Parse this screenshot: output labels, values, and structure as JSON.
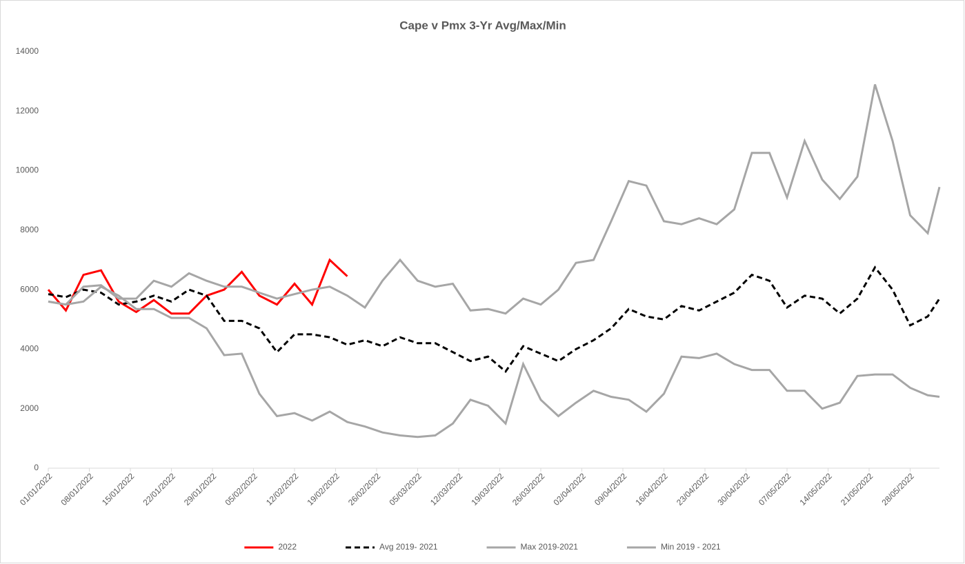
{
  "chart_data": {
    "type": "line",
    "title": "Cape v  Pmx 3-Yr Avg/Max/Min",
    "x": [
      "01/01/2022",
      "04/01/2022",
      "07/01/2022",
      "10/01/2022",
      "13/01/2022",
      "16/01/2022",
      "19/01/2022",
      "22/01/2022",
      "25/01/2022",
      "28/01/2022",
      "31/01/2022",
      "03/02/2022",
      "06/02/2022",
      "09/02/2022",
      "12/02/2022",
      "15/02/2022",
      "18/02/2022",
      "21/02/2022",
      "24/02/2022",
      "27/02/2022",
      "02/03/2022",
      "05/03/2022",
      "08/03/2022",
      "11/03/2022",
      "14/03/2022",
      "17/03/2022",
      "20/03/2022",
      "23/03/2022",
      "26/03/2022",
      "29/03/2022",
      "01/04/2022",
      "04/04/2022",
      "07/04/2022",
      "10/04/2022",
      "13/04/2022",
      "16/04/2022",
      "19/04/2022",
      "22/04/2022",
      "25/04/2022",
      "28/04/2022",
      "01/05/2022",
      "04/05/2022",
      "07/05/2022",
      "10/05/2022",
      "13/05/2022",
      "16/05/2022",
      "19/05/2022",
      "22/05/2022",
      "25/05/2022",
      "28/05/2022",
      "31/05/2022",
      "02/06/2022"
    ],
    "xlim": [
      "01/01/2022",
      "02/06/2022"
    ],
    "xticks": [
      "01/01/2022",
      "08/01/2022",
      "15/01/2022",
      "22/01/2022",
      "29/01/2022",
      "05/02/2022",
      "12/02/2022",
      "19/02/2022",
      "26/02/2022",
      "05/03/2022",
      "12/03/2022",
      "19/03/2022",
      "26/03/2022",
      "02/04/2022",
      "09/04/2022",
      "16/04/2022",
      "23/04/2022",
      "30/04/2022",
      "07/05/2022",
      "14/05/2022",
      "21/05/2022",
      "28/05/2022"
    ],
    "ylim": [
      0,
      14000
    ],
    "yticks": [
      0,
      2000,
      4000,
      6000,
      8000,
      10000,
      12000,
      14000
    ],
    "grid": false,
    "legend": "bottom",
    "series": [
      {
        "name": "2022",
        "color": "#ff0000",
        "dash": false,
        "values": [
          6000,
          5300,
          6500,
          6650,
          5600,
          5250,
          5650,
          5200,
          5200,
          5800,
          6000,
          6600,
          5800,
          5500,
          6200,
          5500,
          7000,
          6450,
          null,
          null,
          null,
          null,
          null,
          null,
          null,
          null,
          null,
          null,
          null,
          null,
          null,
          null,
          null,
          null,
          null,
          null,
          null,
          null,
          null,
          null,
          null,
          null,
          null,
          null,
          null,
          null,
          null,
          null,
          null,
          null,
          null,
          null
        ]
      },
      {
        "name": "Avg 2019- 2021",
        "color": "#000000",
        "dash": true,
        "values": [
          5850,
          5750,
          6000,
          5900,
          5500,
          5600,
          5800,
          5600,
          6000,
          5800,
          4950,
          4950,
          4700,
          3900,
          4500,
          4500,
          4400,
          4150,
          4300,
          4100,
          4400,
          4200,
          4200,
          3900,
          3600,
          3750,
          3250,
          4100,
          3850,
          3600,
          4000,
          4300,
          4700,
          5350,
          5100,
          5000,
          5450,
          5300,
          5600,
          5900,
          6500,
          6300,
          5400,
          5800,
          5700,
          5200,
          5700,
          6750,
          6000,
          4800,
          5100,
          5700
        ]
      },
      {
        "name": "Max 2019-2021",
        "color": "#a6a6a6",
        "dash": false,
        "values": [
          5600,
          5500,
          6100,
          6150,
          5700,
          5700,
          6300,
          6100,
          6550,
          6300,
          6100,
          6100,
          5900,
          5700,
          5850,
          6000,
          6100,
          5800,
          5400,
          6300,
          7000,
          6300,
          6100,
          6200,
          5300,
          5350,
          5200,
          5700,
          5500,
          6000,
          6900,
          7000,
          8300,
          9650,
          9500,
          8300,
          8200,
          8400,
          8200,
          8700,
          10600,
          10600,
          9100,
          11000,
          9700,
          9050,
          9800,
          12900,
          11000,
          8500,
          7900,
          9450
        ]
      },
      {
        "name": "Min 2019 - 2021",
        "color": "#a6a6a6",
        "dash": false,
        "values": [
          5600,
          5500,
          5600,
          6100,
          5800,
          5350,
          5350,
          5050,
          5050,
          4700,
          3800,
          3850,
          2500,
          1750,
          1850,
          1600,
          1900,
          1550,
          1400,
          1200,
          1100,
          1050,
          1100,
          1500,
          2300,
          2100,
          1500,
          3500,
          2300,
          1750,
          2200,
          2600,
          2400,
          2300,
          1900,
          2500,
          3750,
          3700,
          3850,
          3500,
          3300,
          3300,
          2600,
          2600,
          2000,
          2200,
          3100,
          3150,
          3150,
          2700,
          2450,
          2400
        ]
      }
    ]
  }
}
